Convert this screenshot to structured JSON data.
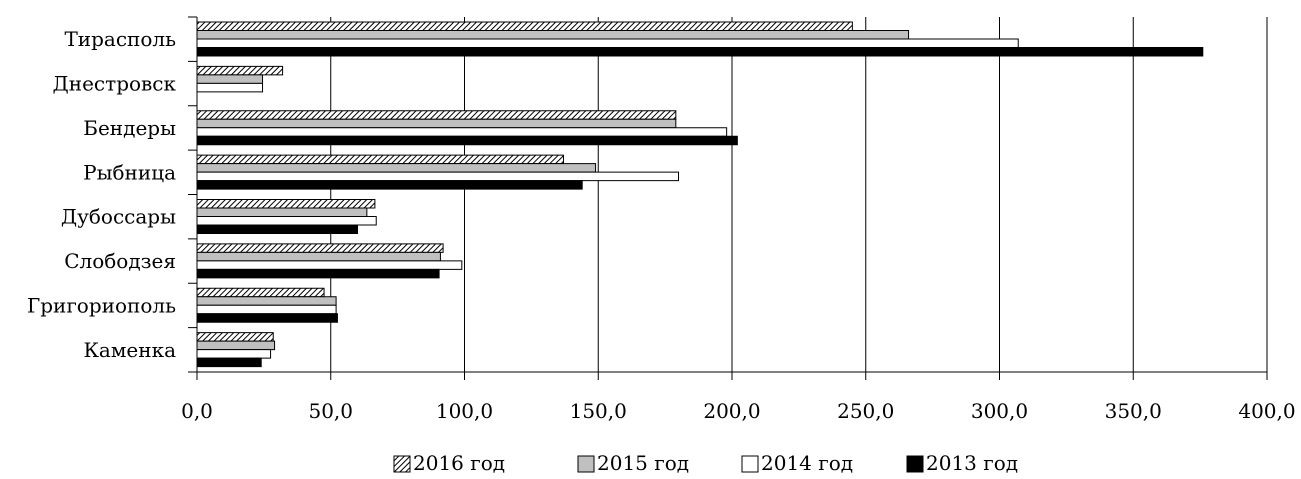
{
  "chart_data": {
    "type": "bar",
    "orientation": "horizontal",
    "categories": [
      "Тирасполь",
      "Днестровск",
      "Бендеры",
      "Рыбница",
      "Дубоссары",
      "Слободзея",
      "Григориополь",
      "Каменка"
    ],
    "series": [
      {
        "name": "2016 год",
        "pattern": "hatched",
        "values": [
          245.0,
          32.0,
          179.0,
          137.0,
          66.5,
          92.0,
          47.5,
          28.5
        ]
      },
      {
        "name": "2015 год",
        "color": "#c0c0c0",
        "values": [
          266.0,
          24.5,
          179.0,
          149.0,
          63.5,
          91.0,
          52.0,
          29.0
        ]
      },
      {
        "name": "2014 год",
        "color": "#ffffff",
        "values": [
          307.0,
          24.5,
          198.0,
          180.0,
          67.0,
          99.0,
          52.0,
          27.5
        ]
      },
      {
        "name": "2013 год",
        "color": "#000000",
        "values": [
          376.0,
          null,
          202.0,
          144.0,
          60.0,
          90.5,
          52.5,
          24.0
        ]
      }
    ],
    "xlim": [
      0,
      400
    ],
    "xticks": [
      "0,0",
      "50,0",
      "100,0",
      "150,0",
      "200,0",
      "250,0",
      "300,0",
      "350,0",
      "400,0"
    ],
    "grid": "vertical",
    "legend_position": "bottom",
    "title": "",
    "xlabel": "",
    "ylabel": ""
  }
}
